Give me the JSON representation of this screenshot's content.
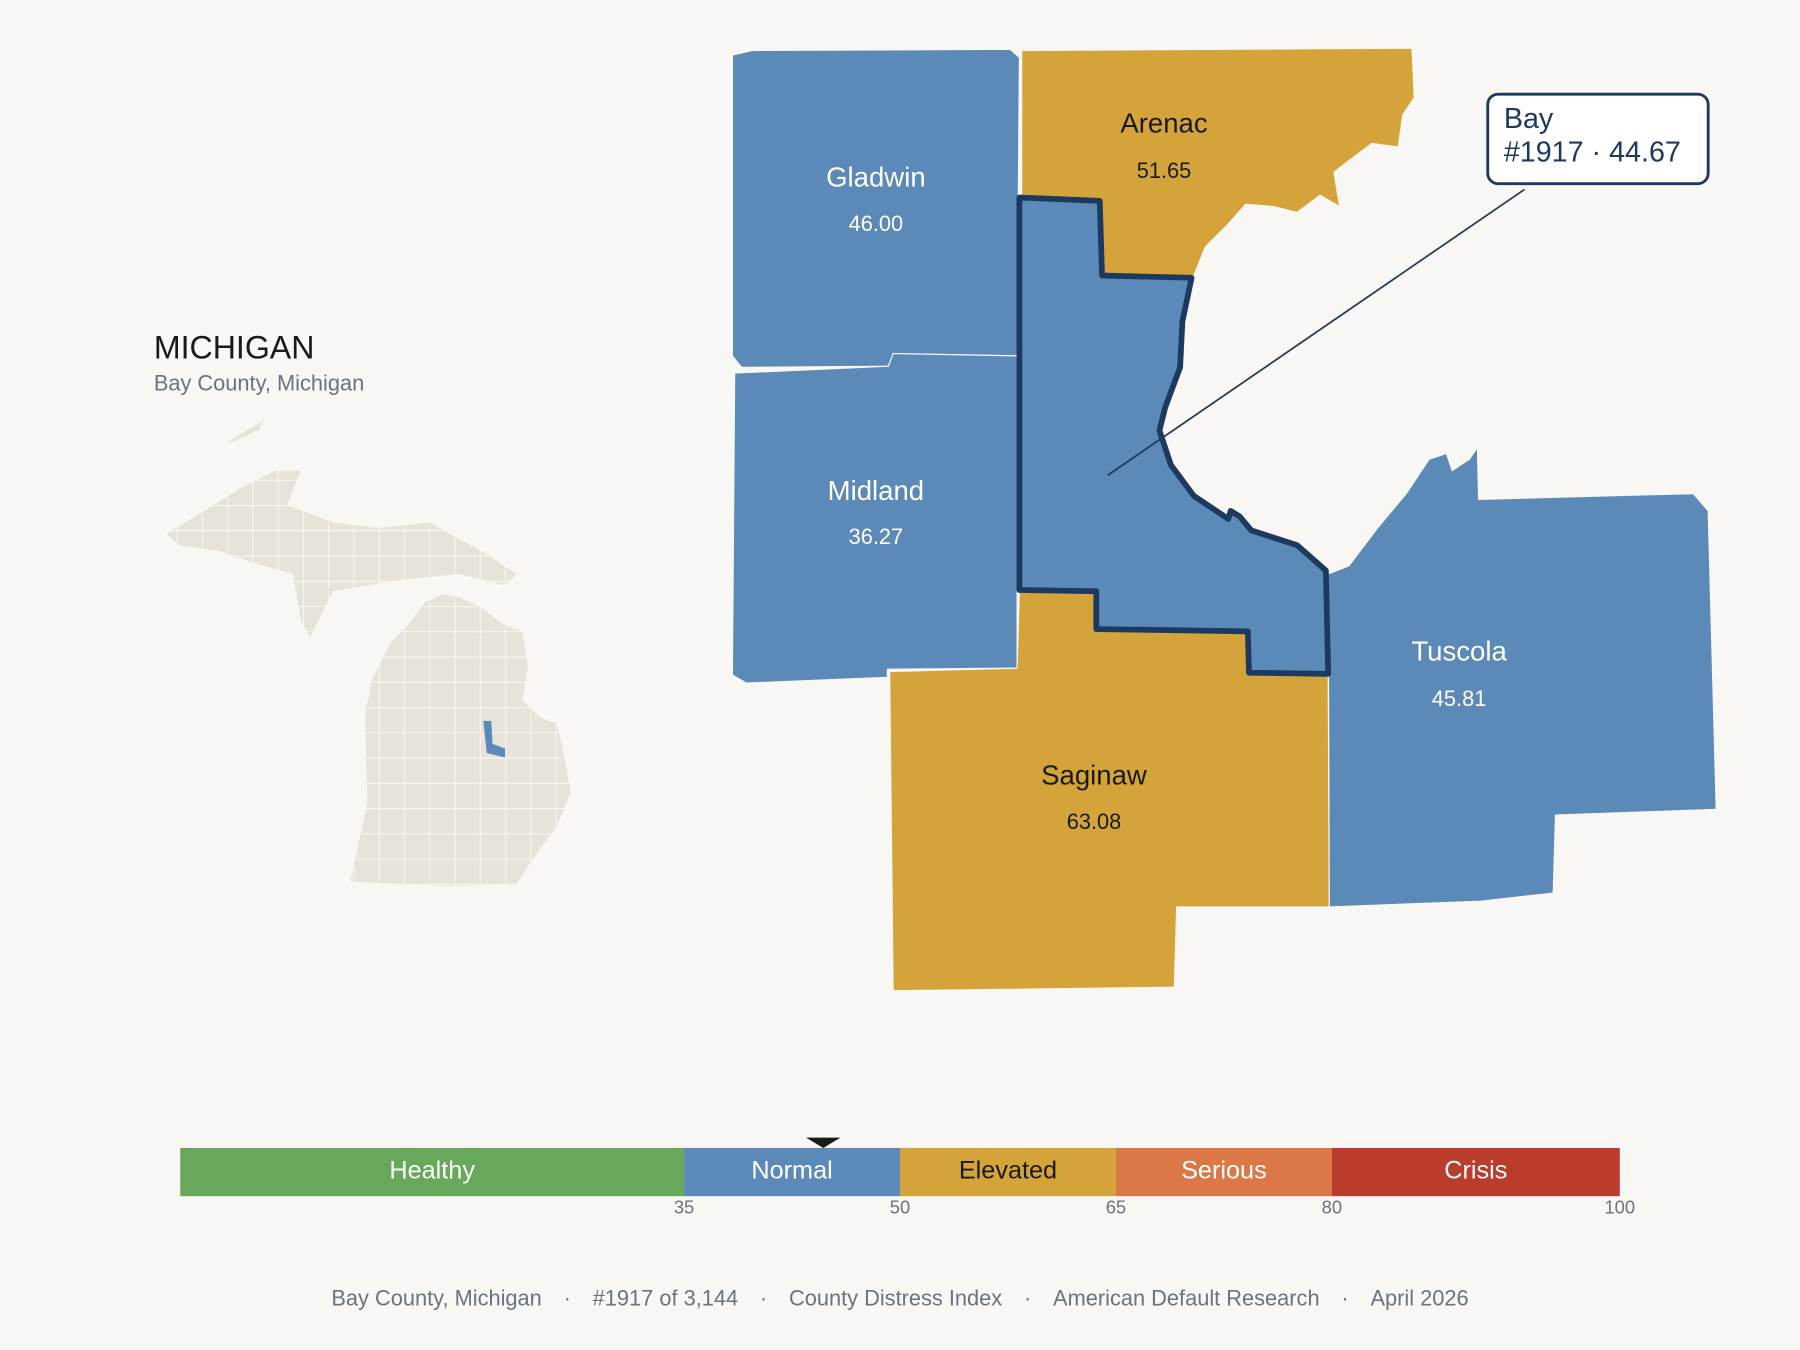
{
  "state": "MICHIGAN",
  "subtitle": "Bay County, Michigan",
  "counties": [
    {
      "name": "Gladwin",
      "value": 46,
      "value_label": "46.00"
    },
    {
      "name": "Midland",
      "value": 36.27
    },
    {
      "name": "Arenac",
      "value": 51.65
    },
    {
      "name": "Saginaw",
      "value": 63.08
    },
    {
      "name": "Tuscola",
      "value": 45.81
    }
  ],
  "selected": {
    "name": "Bay",
    "label": "#1917 · 44.67",
    "value": 44.67
  },
  "legend": {
    "range": [
      0,
      100
    ],
    "ticks": [
      35,
      50,
      65,
      80,
      100
    ],
    "bands": [
      {
        "label": "Healthy",
        "color": "#67a85a",
        "text": "#ffffff"
      },
      {
        "label": "Normal",
        "color": "#5b89b8",
        "text": "#ffffff"
      },
      {
        "label": "Elevated",
        "color": "#d4a43a",
        "text": "#1a1a1a"
      },
      {
        "label": "Serious",
        "color": "#dc7848",
        "text": "#ffffff"
      },
      {
        "label": "Crisis",
        "color": "#b93c2c",
        "text": "#ffffff"
      }
    ]
  },
  "footer": {
    "separator": "·",
    "items": [
      "Bay County, Michigan",
      "#1917 of 3,144",
      "County Distress Index",
      "American Default Research",
      "April 2026"
    ]
  }
}
